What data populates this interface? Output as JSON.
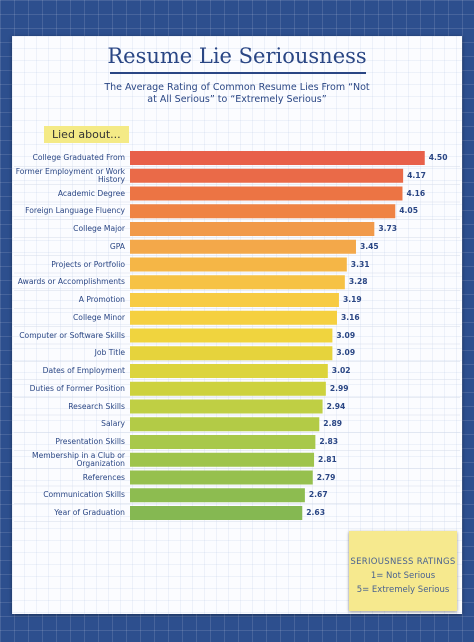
{
  "chart_data": {
    "type": "bar",
    "orientation": "horizontal",
    "title": "Resume Lie Seriousness",
    "subtitle": "The Average Rating of Common Resume Lies From “Not at All Serious” to “Extremely Serious”",
    "category_heading": "Lied about...",
    "categories": [
      "College Graduated From",
      "Former Employment or Work History",
      "Academic Degree",
      "Foreign Language Fluency",
      "College Major",
      "GPA",
      "Projects or Portfolio",
      "Awards or Accomplishments",
      "A Promotion",
      "College Minor",
      "Computer or Software Skills",
      "Job Title",
      "Dates of Employment",
      "Duties of Former Position",
      "Research Skills",
      "Salary",
      "Presentation Skills",
      "Membership in a Club or Organization",
      "References",
      "Communication Skills",
      "Year of Graduation"
    ],
    "values": [
      4.5,
      4.17,
      4.16,
      4.05,
      3.73,
      3.45,
      3.31,
      3.28,
      3.19,
      3.16,
      3.09,
      3.09,
      3.02,
      2.99,
      2.94,
      2.89,
      2.83,
      2.81,
      2.79,
      2.67,
      2.63
    ],
    "value_labels": [
      "4.50",
      "4.17",
      "4.16",
      "4.05",
      "3.73",
      "3.45",
      "3.31",
      "3.28",
      "3.19",
      "3.16",
      "3.09",
      "3.09",
      "3.02",
      "2.99",
      "2.94",
      "2.89",
      "2.83",
      "2.81",
      "2.79",
      "2.67",
      "2.63"
    ],
    "colors": [
      "#e8604a",
      "#ea6a48",
      "#ec7444",
      "#ef8344",
      "#f19a4a",
      "#f3a84a",
      "#f5b646",
      "#f6c244",
      "#f7cb42",
      "#f5d040",
      "#f0d43e",
      "#e6d33c",
      "#dcd43c",
      "#cdd23e",
      "#bfcf44",
      "#b3cb46",
      "#a8c84a",
      "#9fc44c",
      "#96c04e",
      "#8dbc50",
      "#85b852"
    ],
    "note": {
      "title": "SERIOUSNESS RATINGS",
      "lines": [
        "1= Not Serious",
        "5= Extremely Serious"
      ]
    }
  }
}
